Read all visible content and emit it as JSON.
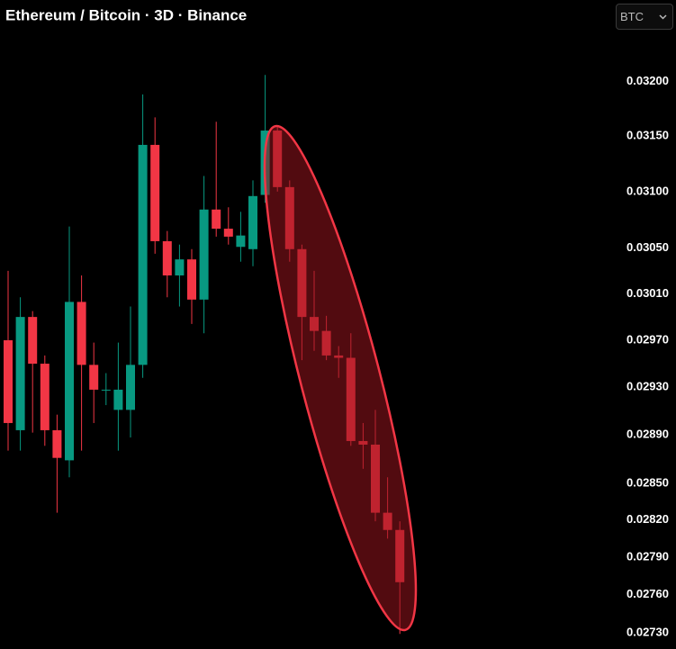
{
  "toolbar": {
    "currency": "BTC"
  },
  "chart_data": {
    "type": "candlestick",
    "title": "Ethereum / Bitcoin · 3D · Binance",
    "up_color": "#089981",
    "down_color": "#f23645",
    "log_scale": true,
    "grid": false,
    "ylim": [
      0.0272,
      0.0327
    ],
    "yticks": [
      {
        "value": 0.032,
        "label": "0.03200"
      },
      {
        "value": 0.0315,
        "label": "0.03150"
      },
      {
        "value": 0.031,
        "label": "0.03100"
      },
      {
        "value": 0.0305,
        "label": "0.03050"
      },
      {
        "value": 0.0301,
        "label": "0.03010"
      },
      {
        "value": 0.0297,
        "label": "0.02970"
      },
      {
        "value": 0.0293,
        "label": "0.02930"
      },
      {
        "value": 0.0289,
        "label": "0.02890"
      },
      {
        "value": 0.0285,
        "label": "0.02850"
      },
      {
        "value": 0.0282,
        "label": "0.02820"
      },
      {
        "value": 0.0279,
        "label": "0.02790"
      },
      {
        "value": 0.0276,
        "label": "0.02760"
      },
      {
        "value": 0.0273,
        "label": "0.02730"
      }
    ],
    "open": [
      0.0297,
      0.02894,
      0.0299,
      0.0295,
      0.02894,
      0.02869,
      0.03003,
      0.02949,
      0.02928,
      0.02911,
      0.02911,
      0.02949,
      0.03142,
      0.03056,
      0.03026,
      0.0304,
      0.03005,
      0.03084,
      0.03067,
      0.03051,
      0.03049,
      0.03097,
      0.03155,
      0.03104,
      0.03049,
      0.0299,
      0.02978,
      0.02957,
      0.02955,
      0.02885,
      0.02882,
      0.02826,
      0.02812
    ],
    "high": [
      0.0303,
      0.03007,
      0.02995,
      0.02957,
      0.02907,
      0.03069,
      0.03026,
      0.02968,
      0.02942,
      0.02968,
      0.02999,
      0.03188,
      0.03167,
      0.03065,
      0.03053,
      0.03049,
      0.03114,
      0.03163,
      0.03086,
      0.03082,
      0.0311,
      0.03206,
      0.03158,
      0.0311,
      0.03053,
      0.0303,
      0.02991,
      0.02965,
      0.02976,
      0.029,
      0.02911,
      0.02855,
      0.02819
    ],
    "low": [
      0.02877,
      0.02877,
      0.02892,
      0.02881,
      0.02826,
      0.02855,
      0.02877,
      0.029,
      0.02915,
      0.02877,
      0.02888,
      0.02938,
      0.03045,
      0.03007,
      0.02999,
      0.02984,
      0.02976,
      0.0306,
      0.03053,
      0.03038,
      0.03034,
      0.0309,
      0.031,
      0.03038,
      0.02953,
      0.02961,
      0.02953,
      0.02938,
      0.02881,
      0.02862,
      0.02819,
      0.02805,
      0.02729
    ],
    "close": [
      0.029,
      0.0299,
      0.0295,
      0.02894,
      0.02871,
      0.03003,
      0.02949,
      0.02928,
      0.02928,
      0.02928,
      0.02949,
      0.03142,
      0.03056,
      0.03026,
      0.0304,
      0.03005,
      0.03084,
      0.03067,
      0.0306,
      0.03061,
      0.03096,
      0.03155,
      0.03104,
      0.03049,
      0.0299,
      0.02978,
      0.02957,
      0.02955,
      0.02885,
      0.02882,
      0.02826,
      0.02812,
      0.0277
    ]
  }
}
